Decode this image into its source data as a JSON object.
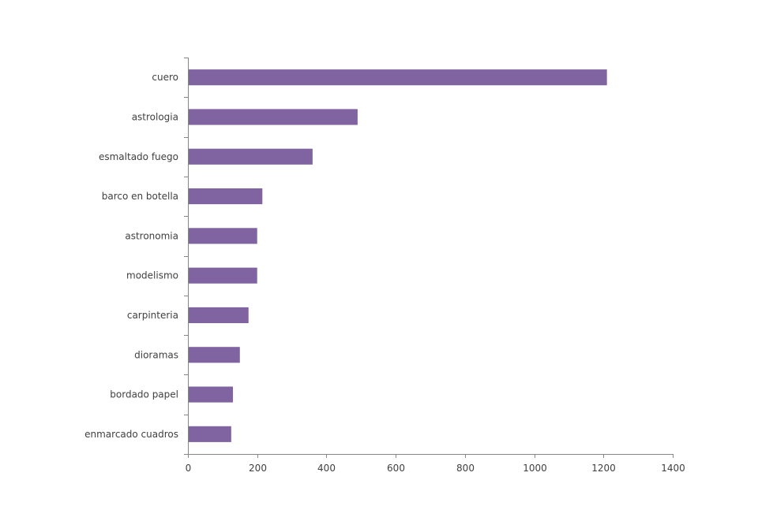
{
  "chart_data": {
    "type": "bar",
    "orientation": "horizontal",
    "categories": [
      "cuero",
      "astrologia",
      "esmaltado fuego",
      "barco en botella",
      "astronomia",
      "modelismo",
      "carpinteria",
      "dioramas",
      "bordado papel",
      "enmarcado cuadros"
    ],
    "values": [
      1210,
      490,
      360,
      215,
      200,
      200,
      175,
      150,
      130,
      125
    ],
    "title": "",
    "xlabel": "",
    "ylabel": "",
    "xlim": [
      0,
      1400
    ],
    "xticks": [
      0,
      200,
      400,
      600,
      800,
      1000,
      1200,
      1400
    ],
    "grid": false,
    "legend": "none",
    "colors": {
      "bar": "#8064a2",
      "axis": "#868686",
      "text": "#404040"
    }
  }
}
